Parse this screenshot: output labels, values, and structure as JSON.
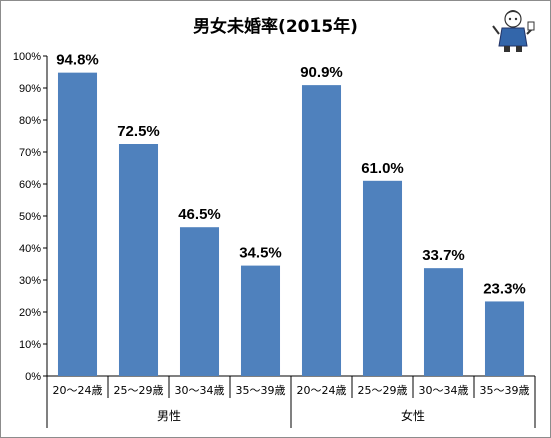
{
  "chart_data": {
    "type": "bar",
    "title": "男女未婚率(2015年)",
    "groups": [
      {
        "name": "男性",
        "categories": [
          "20〜24歳",
          "25〜29歳",
          "30〜34歳",
          "35〜39歳"
        ],
        "values": [
          94.8,
          72.5,
          46.5,
          34.5
        ],
        "labels": [
          "94.8%",
          "72.5%",
          "46.5%",
          "34.5%"
        ]
      },
      {
        "name": "女性",
        "categories": [
          "20〜24歳",
          "25〜29歳",
          "30〜34歳",
          "35〜39歳"
        ],
        "values": [
          90.9,
          61.0,
          33.7,
          23.3
        ],
        "labels": [
          "90.9%",
          "61.0%",
          "33.7%",
          "23.3%"
        ]
      }
    ],
    "ylim": [
      0,
      100
    ],
    "yticks": [
      "0%",
      "10%",
      "20%",
      "30%",
      "40%",
      "50%",
      "60%",
      "70%",
      "80%",
      "90%",
      "100%"
    ],
    "bar_color": "#4f81bd",
    "grid": false,
    "legend": "none"
  }
}
